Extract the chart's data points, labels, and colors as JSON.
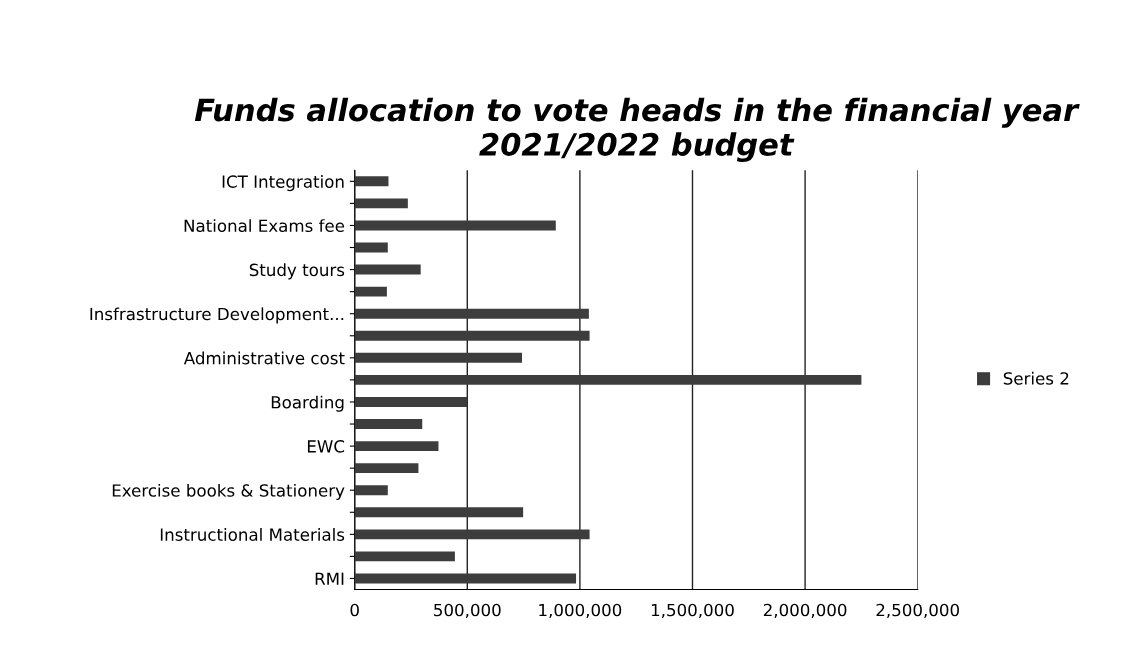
{
  "chart_data": {
    "type": "bar",
    "orientation": "horizontal",
    "title": "Funds allocation to vote heads in the financial year 2021/2022 budget",
    "categories": [
      "ICT Integration",
      null,
      "National Exams fee",
      null,
      "Study tours",
      null,
      "Insfrastructure Development...",
      null,
      "Administrative cost",
      null,
      "Boarding",
      null,
      "EWC",
      null,
      "Exercise books & Stationery",
      null,
      "Instructional Materials",
      null,
      "RMI"
    ],
    "series": [
      {
        "name": "Series 2",
        "color": "#3d3d3d",
        "values": [
          150000,
          236000,
          893000,
          147000,
          293000,
          143000,
          1040000,
          1043000,
          743000,
          2250000,
          500000,
          300000,
          372000,
          283000,
          147000,
          748000,
          1043000,
          445000,
          983000
        ]
      }
    ],
    "xlim": [
      0,
      2500000
    ],
    "xticks": [
      {
        "value": 0,
        "label": "0"
      },
      {
        "value": 500000,
        "label": "500,000"
      },
      {
        "value": 1000000,
        "label": "1,000,000"
      },
      {
        "value": 1500000,
        "label": "1,500,000"
      },
      {
        "value": 2000000,
        "label": "2,000,000"
      },
      {
        "value": 2500000,
        "label": "2,500,000"
      }
    ],
    "grid": "x",
    "legend": "right"
  }
}
